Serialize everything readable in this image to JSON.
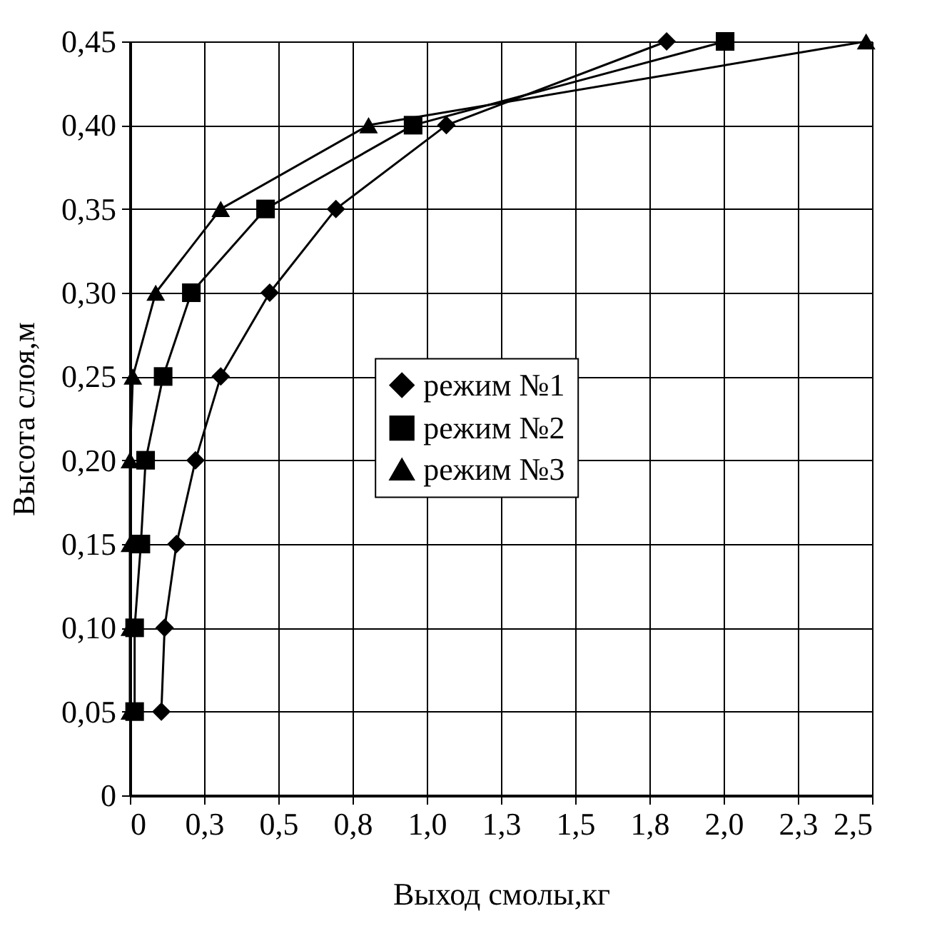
{
  "chart_data": {
    "type": "line",
    "ylabel": "Высота слоя,м",
    "xlabel": "Выход смолы,кг",
    "series": [
      {
        "name": "режим №1",
        "color": "#000000",
        "marker": "diamond",
        "x": [
          0.106,
          0.117,
          0.157,
          0.221,
          0.306,
          0.471,
          0.694,
          1.066,
          1.808
        ],
        "values": [
          0.05,
          0.1,
          0.15,
          0.2,
          0.25,
          0.3,
          0.35,
          0.4,
          0.45
        ]
      },
      {
        "name": "режим №2",
        "color": "#000000",
        "marker": "square",
        "x": [
          0.016,
          0.016,
          0.037,
          0.053,
          0.112,
          0.207,
          0.457,
          0.954,
          2.005
        ],
        "values": [
          0.05,
          0.1,
          0.15,
          0.2,
          0.25,
          0.3,
          0.35,
          0.4,
          0.45
        ]
      },
      {
        "name": "режим №3",
        "color": "#000000",
        "marker": "triangle",
        "x": [
          0.0,
          0.0,
          0.0,
          0.0,
          0.01,
          0.087,
          0.306,
          0.804,
          2.48
        ],
        "values": [
          0.05,
          0.1,
          0.15,
          0.2,
          0.25,
          0.3,
          0.35,
          0.4,
          0.45
        ]
      }
    ],
    "xlim": [
      0,
      2.5
    ],
    "xticks": [
      0,
      {
        "value": 0.25,
        "label": "0,3"
      },
      {
        "value": 0.5,
        "label": "0,5"
      },
      {
        "value": 0.75,
        "label": "0,8"
      },
      {
        "value": 1.0,
        "label": "1,0"
      },
      {
        "value": 1.25,
        "label": "1,3"
      },
      {
        "value": 1.5,
        "label": "1,5"
      },
      {
        "value": 1.75,
        "label": "1,8"
      },
      {
        "value": 2.0,
        "label": "2,0"
      },
      {
        "value": 2.25,
        "label": "2,3"
      },
      {
        "value": 2.5,
        "label": "2,5"
      }
    ],
    "ylim": [
      0,
      0.45
    ],
    "yticks": [
      0,
      {
        "value": 0.05,
        "label": "0,05"
      },
      {
        "value": 0.1,
        "label": "0,10"
      },
      {
        "value": 0.15,
        "label": "0,15"
      },
      {
        "value": 0.2,
        "label": "0,20"
      },
      {
        "value": 0.25,
        "label": "0,25"
      },
      {
        "value": 0.3,
        "label": "0,30"
      },
      {
        "value": 0.35,
        "label": "0,35"
      },
      {
        "value": 0.4,
        "label": "0,40"
      },
      {
        "value": 0.45,
        "label": "0,45"
      }
    ],
    "grid": true,
    "legend": "center",
    "line_style": "solid"
  }
}
